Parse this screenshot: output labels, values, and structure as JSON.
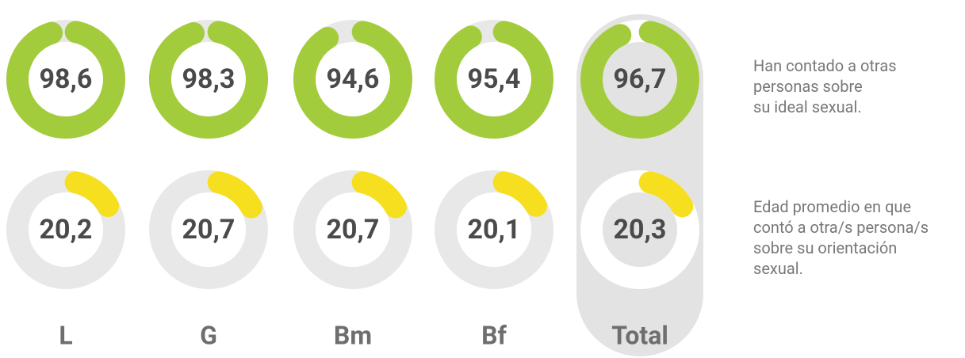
{
  "chart_data": {
    "type": "donut",
    "categories": [
      "L",
      "G",
      "Bm",
      "Bf",
      "Total"
    ],
    "highlight_category": "Total",
    "track_color": "#e8e8e8",
    "highlight_color": "#e3e3e3",
    "series": [
      {
        "color": "#a3cc3c",
        "values": [
          98.6,
          98.3,
          94.6,
          95.4,
          96.7
        ],
        "value_labels": [
          "98,6",
          "98,3",
          "94,6",
          "95,4",
          "96,7"
        ],
        "ylim": [
          0,
          100
        ],
        "annotation": [
          "Han contado a otras",
          "personas sobre",
          "su ideal sexual."
        ]
      },
      {
        "color": "#f5df1e",
        "values": [
          20.2,
          20.7,
          20.7,
          20.1,
          20.3
        ],
        "value_labels": [
          "20,2",
          "20,7",
          "20,7",
          "20,1",
          "20,3"
        ],
        "ylim": [
          0,
          120
        ],
        "annotation": [
          "Edad promedio en que",
          "contó a otra/s persona/s",
          "sobre su orientación",
          "sexual."
        ]
      }
    ]
  }
}
